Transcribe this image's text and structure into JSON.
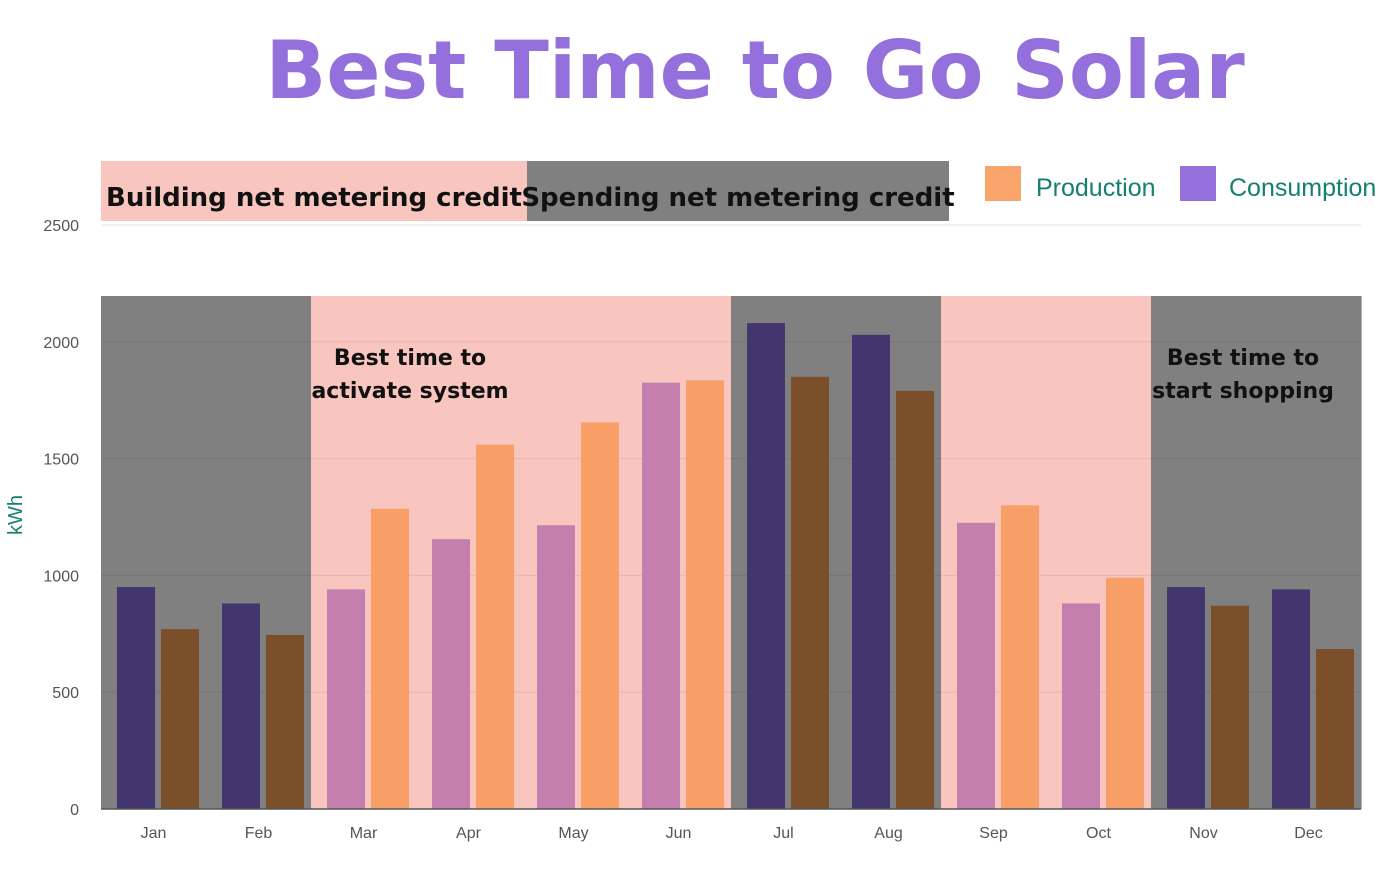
{
  "chart_data": {
    "type": "bar",
    "title": "Best Time to Go Solar",
    "ylabel": "kWh",
    "xlabel": "",
    "ylim": [
      0,
      2500
    ],
    "yticks": [
      0,
      500,
      1000,
      1500,
      2000,
      2500
    ],
    "grid": true,
    "categories": [
      "Jan",
      "Feb",
      "Mar",
      "Apr",
      "May",
      "Jun",
      "Jul",
      "Aug",
      "Sep",
      "Oct",
      "Nov",
      "Dec"
    ],
    "series": [
      {
        "name": "Consumption",
        "legend_color": "#9370db",
        "values": [
          950,
          880,
          940,
          1155,
          1215,
          1825,
          2080,
          2030,
          1225,
          880,
          950,
          940
        ]
      },
      {
        "name": "Production",
        "legend_color": "#f9a46b",
        "values": [
          770,
          745,
          1285,
          1560,
          1655,
          1835,
          1850,
          1790,
          1300,
          990,
          870,
          685
        ]
      }
    ],
    "legend_position": "top-right",
    "month_backgrounds": [
      "dark",
      "dark",
      "light",
      "light",
      "light",
      "light",
      "dark",
      "dark",
      "light",
      "light",
      "dark",
      "dark"
    ],
    "colors": {
      "dark_background": "#808080",
      "light_background": "#f9c5bf",
      "consumption_on_dark": "#43366e",
      "production_on_dark": "#7b4f29",
      "consumption_on_light": "#c47fae",
      "production_on_light": "#f89f68",
      "title": "#9370db",
      "legend_text": "#15806f",
      "axis_text": "#555555"
    },
    "header_bands": [
      {
        "label": "Building net metering credit",
        "style": "light"
      },
      {
        "label": "Spending net metering credit",
        "style": "dark"
      }
    ],
    "annotations": [
      {
        "lines": [
          "Best time to",
          "activate system"
        ],
        "month": "Mar"
      },
      {
        "lines": [
          "Best time to",
          "start shopping"
        ],
        "month": "Nov"
      }
    ]
  }
}
